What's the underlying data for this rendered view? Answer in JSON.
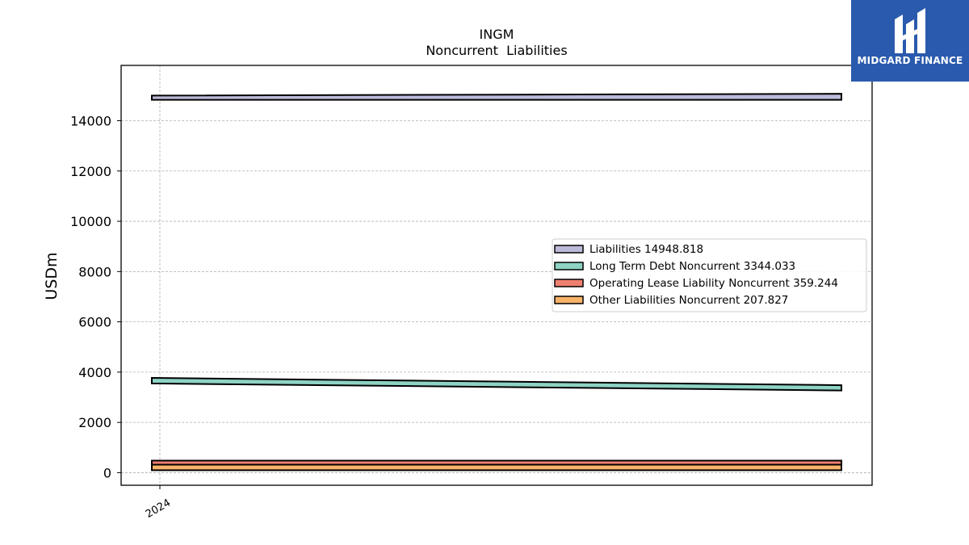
{
  "title_line1": "INGM",
  "title_line2": "Noncurrent  Liabilities",
  "logo": {
    "text": "MIDGARD FINANCE",
    "bg_color": "#2a5aad"
  },
  "chart_data": {
    "type": "area",
    "title": "INGM\nNoncurrent  Liabilities",
    "ylabel": "USDm",
    "xlabel": "",
    "x_ticks": [
      "2024"
    ],
    "y_ticks": [
      0,
      2000,
      4000,
      6000,
      8000,
      10000,
      12000,
      14000
    ],
    "ylim": [
      -500,
      16200
    ],
    "grid": true,
    "legend_position": "center-right",
    "x_domain": [
      0,
      1
    ],
    "series": [
      {
        "name": "Liabilities",
        "legend_label": "Liabilities  14948.818",
        "color": "#bcbad9",
        "x": [
          0,
          1
        ],
        "lower": [
          14830,
          14830
        ],
        "upper": [
          15000,
          15070
        ]
      },
      {
        "name": "Long Term Debt Noncurrent",
        "legend_label": "Long Term Debt Noncurrent  3344.033",
        "color": "#8ed3c4",
        "x": [
          0,
          1
        ],
        "lower": [
          3550,
          3270
        ],
        "upper": [
          3770,
          3480
        ]
      },
      {
        "name": "Operating Lease Liability Noncurrent",
        "legend_label": "Operating Lease Liability Noncurrent  359.244",
        "color": "#ef8070",
        "x": [
          0,
          1
        ],
        "lower": [
          300,
          300
        ],
        "upper": [
          480,
          480
        ]
      },
      {
        "name": "Other Liabilities Noncurrent",
        "legend_label": "Other Liabilities Noncurrent  207.827",
        "color": "#f9b26a",
        "x": [
          0,
          1
        ],
        "lower": [
          100,
          100
        ],
        "upper": [
          320,
          320
        ]
      }
    ]
  }
}
